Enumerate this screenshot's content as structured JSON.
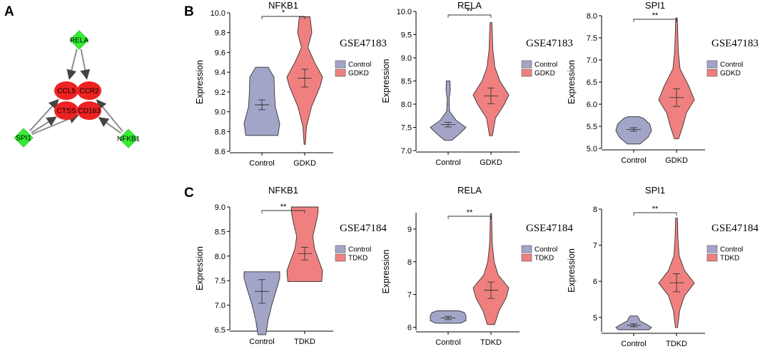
{
  "panel_labels": [
    "A",
    "B",
    "C"
  ],
  "network": {
    "nodes": [
      {
        "id": "RELA",
        "kind": "tf"
      },
      {
        "id": "SPI1",
        "kind": "tf"
      },
      {
        "id": "NFKB1",
        "kind": "tf"
      },
      {
        "id": "CCL5",
        "kind": "target"
      },
      {
        "id": "CCR2",
        "kind": "target"
      },
      {
        "id": "CTSS",
        "kind": "target"
      },
      {
        "id": "CD163",
        "kind": "target"
      }
    ],
    "edges": [
      [
        "RELA",
        "CCL5"
      ],
      [
        "RELA",
        "CCR2"
      ],
      [
        "SPI1",
        "CCL5"
      ],
      [
        "SPI1",
        "CTSS"
      ],
      [
        "SPI1",
        "CD163"
      ],
      [
        "NFKB1",
        "CCR2"
      ],
      [
        "NFKB1",
        "CD163"
      ]
    ],
    "colors": {
      "tf": "#33ee33",
      "target": "#ee2222",
      "edge": "#8c8c8c"
    }
  },
  "legend_colors": {
    "control": "#a3a5c8",
    "disease": "#f08080"
  },
  "chart_data": [
    {
      "type": "violin",
      "panel": "B",
      "title": "NFKB1",
      "dataset": "GSE47183",
      "ylabel": "Expression",
      "categories": [
        "Control",
        "GDKD"
      ],
      "ylim": [
        8.6,
        10.0
      ],
      "yticks": [
        "8.6",
        "8.8",
        "9.0",
        "9.2",
        "9.4",
        "9.6",
        "9.8",
        "10.0"
      ],
      "significance": "*",
      "legend": [
        "Control",
        "GDKD"
      ],
      "groups": [
        {
          "min": 8.76,
          "max": 9.45,
          "mean": 9.07,
          "se": 0.05,
          "profile": [
            [
              8.76,
              0.9
            ],
            [
              8.88,
              1.0
            ],
            [
              9.05,
              0.75
            ],
            [
              9.2,
              0.7
            ],
            [
              9.35,
              0.68
            ],
            [
              9.45,
              0.35
            ]
          ]
        },
        {
          "min": 8.67,
          "max": 9.96,
          "mean": 9.34,
          "se": 0.09,
          "profile": [
            [
              8.67,
              0.02
            ],
            [
              8.85,
              0.1
            ],
            [
              9.05,
              0.38
            ],
            [
              9.25,
              0.85
            ],
            [
              9.35,
              1.0
            ],
            [
              9.5,
              0.55
            ],
            [
              9.65,
              0.18
            ],
            [
              9.8,
              0.4
            ],
            [
              9.96,
              0.3
            ]
          ]
        }
      ]
    },
    {
      "type": "violin",
      "panel": "B",
      "title": "RELA",
      "dataset": "GSE47183",
      "ylabel": "Expression",
      "categories": [
        "Control",
        "GDKD"
      ],
      "ylim": [
        7.0,
        10.0
      ],
      "yticks": [
        "7.0",
        "7.5",
        "8.0",
        "8.5",
        "9.0",
        "9.5",
        "10.0"
      ],
      "significance": "**",
      "legend": [
        "Control",
        "GDKD"
      ],
      "groups": [
        {
          "min": 7.22,
          "max": 8.5,
          "mean": 7.56,
          "se": 0.05,
          "profile": [
            [
              7.22,
              0.2
            ],
            [
              7.35,
              0.6
            ],
            [
              7.5,
              1.0
            ],
            [
              7.65,
              0.45
            ],
            [
              7.85,
              0.08
            ],
            [
              8.1,
              0.05
            ],
            [
              8.3,
              0.12
            ],
            [
              8.5,
              0.1
            ]
          ]
        },
        {
          "min": 7.32,
          "max": 9.76,
          "mean": 8.18,
          "se": 0.17,
          "profile": [
            [
              7.32,
              0.08
            ],
            [
              7.7,
              0.25
            ],
            [
              8.0,
              0.75
            ],
            [
              8.2,
              1.0
            ],
            [
              8.5,
              0.5
            ],
            [
              8.8,
              0.22
            ],
            [
              9.2,
              0.1
            ],
            [
              9.5,
              0.08
            ],
            [
              9.76,
              0.05
            ]
          ]
        }
      ]
    },
    {
      "type": "violin",
      "panel": "B",
      "title": "SPI1",
      "dataset": "GSE47183",
      "ylabel": "Expression",
      "categories": [
        "Control",
        "GDKD"
      ],
      "ylim": [
        5.0,
        8.0
      ],
      "yticks": [
        "5.0",
        "5.5",
        "6.0",
        "6.5",
        "7.0",
        "7.5",
        "8.0"
      ],
      "significance": "**",
      "legend": [
        "Control",
        "GDKD"
      ],
      "groups": [
        {
          "min": 5.1,
          "max": 5.72,
          "mean": 5.43,
          "se": 0.04,
          "profile": [
            [
              5.1,
              0.35
            ],
            [
              5.25,
              0.8
            ],
            [
              5.4,
              1.0
            ],
            [
              5.55,
              0.9
            ],
            [
              5.68,
              0.55
            ],
            [
              5.72,
              0.3
            ]
          ]
        },
        {
          "min": 5.22,
          "max": 7.95,
          "mean": 6.15,
          "se": 0.2,
          "profile": [
            [
              5.22,
              0.12
            ],
            [
              5.5,
              0.35
            ],
            [
              5.8,
              0.55
            ],
            [
              6.1,
              1.0
            ],
            [
              6.4,
              0.7
            ],
            [
              6.8,
              0.2
            ],
            [
              7.2,
              0.1
            ],
            [
              7.6,
              0.07
            ],
            [
              7.95,
              0.04
            ]
          ]
        }
      ]
    },
    {
      "type": "violin",
      "panel": "C",
      "title": "NFKB1",
      "dataset": "GSE47184",
      "ylabel": "Expression",
      "categories": [
        "Control",
        "TDKD"
      ],
      "ylim": [
        6.5,
        9.0
      ],
      "yticks": [
        "6.5",
        "7.0",
        "7.5",
        "8.0",
        "8.5",
        "9.0"
      ],
      "significance": "**",
      "legend": [
        "Control",
        "TDKD"
      ],
      "groups": [
        {
          "min": 6.4,
          "max": 7.68,
          "mean": 7.28,
          "se": 0.24,
          "profile": [
            [
              6.4,
              0.22
            ],
            [
              6.7,
              0.35
            ],
            [
              7.0,
              0.55
            ],
            [
              7.3,
              0.8
            ],
            [
              7.55,
              1.0
            ],
            [
              7.68,
              1.0
            ]
          ]
        },
        {
          "min": 7.48,
          "max": 9.0,
          "mean": 8.05,
          "se": 0.13,
          "profile": [
            [
              7.48,
              0.95
            ],
            [
              7.7,
              1.0
            ],
            [
              7.9,
              0.8
            ],
            [
              8.15,
              0.55
            ],
            [
              8.4,
              0.45
            ],
            [
              8.7,
              0.65
            ],
            [
              8.9,
              0.75
            ],
            [
              9.0,
              0.75
            ]
          ]
        }
      ]
    },
    {
      "type": "violin",
      "panel": "C",
      "title": "RELA",
      "dataset": "GSE47184",
      "ylabel": "Expression",
      "categories": [
        "Control",
        "TDKD"
      ],
      "ylim": [
        5.9,
        9.5
      ],
      "yticks": [
        "6",
        "7",
        "8",
        "9"
      ],
      "significance": "**",
      "legend": [
        "Control",
        "TDKD"
      ],
      "groups": [
        {
          "min": 6.12,
          "max": 6.5,
          "mean": 6.28,
          "se": 0.05,
          "profile": [
            [
              6.12,
              0.7
            ],
            [
              6.2,
              1.0
            ],
            [
              6.35,
              1.0
            ],
            [
              6.45,
              0.9
            ],
            [
              6.5,
              0.6
            ]
          ]
        },
        {
          "min": 6.08,
          "max": 9.47,
          "mean": 7.13,
          "se": 0.25,
          "profile": [
            [
              6.08,
              0.2
            ],
            [
              6.5,
              0.45
            ],
            [
              6.9,
              0.85
            ],
            [
              7.2,
              1.0
            ],
            [
              7.6,
              0.4
            ],
            [
              8.0,
              0.18
            ],
            [
              8.5,
              0.08
            ],
            [
              9.0,
              0.05
            ],
            [
              9.47,
              0.03
            ]
          ]
        }
      ]
    },
    {
      "type": "violin",
      "panel": "C",
      "title": "SPI1",
      "dataset": "GSE47184",
      "ylabel": "Expression",
      "categories": [
        "Control",
        "TDKD"
      ],
      "ylim": [
        4.6,
        8.0
      ],
      "yticks": [
        "5",
        "6",
        "7",
        "8"
      ],
      "significance": "**",
      "legend": [
        "Control",
        "TDKD"
      ],
      "groups": [
        {
          "min": 4.66,
          "max": 5.04,
          "mean": 4.78,
          "se": 0.04,
          "profile": [
            [
              4.66,
              0.85
            ],
            [
              4.72,
              1.0
            ],
            [
              4.8,
              0.75
            ],
            [
              4.9,
              0.35
            ],
            [
              4.97,
              0.3
            ],
            [
              5.04,
              0.2
            ]
          ]
        },
        {
          "min": 4.72,
          "max": 7.75,
          "mean": 5.96,
          "se": 0.25,
          "profile": [
            [
              4.72,
              0.06
            ],
            [
              5.2,
              0.18
            ],
            [
              5.6,
              0.45
            ],
            [
              5.95,
              1.0
            ],
            [
              6.3,
              0.45
            ],
            [
              6.7,
              0.15
            ],
            [
              7.2,
              0.08
            ],
            [
              7.75,
              0.05
            ]
          ]
        }
      ]
    }
  ]
}
